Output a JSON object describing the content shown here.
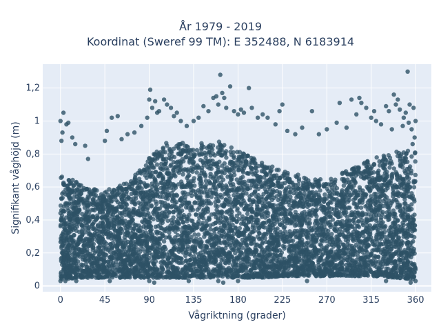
{
  "chart_data": {
    "type": "scatter",
    "title_line1": "År 1979 - 2019",
    "title_line2": "Koordinat (Sweref 99 TM): E 352488, N 6183914",
    "xlabel": "Vågriktning (grader)",
    "ylabel": "Signifikant våghöjd (m)",
    "xlim": [
      -18,
      376
    ],
    "ylim": [
      -0.035,
      1.345
    ],
    "x_ticks": [
      0,
      45,
      90,
      135,
      180,
      225,
      270,
      315,
      360
    ],
    "x_tick_labels": [
      "0",
      "45",
      "90",
      "135",
      "180",
      "225",
      "270",
      "315",
      "360"
    ],
    "y_ticks": [
      0,
      0.2,
      0.4,
      0.6,
      0.8,
      1,
      1.2
    ],
    "y_tick_labels": [
      "0",
      "0,2",
      "0,4",
      "0,6",
      "0,8",
      "1",
      "1,2"
    ],
    "grid": true,
    "marker_color": "#2e5266",
    "plot_background": "#e5ecf6",
    "density_envelope": [
      {
        "x": 0,
        "y_min": 0.04,
        "y_max": 0.68
      },
      {
        "x": 20,
        "y_min": 0.05,
        "y_max": 0.62
      },
      {
        "x": 45,
        "y_min": 0.05,
        "y_max": 0.58
      },
      {
        "x": 70,
        "y_min": 0.05,
        "y_max": 0.63
      },
      {
        "x": 90,
        "y_min": 0.05,
        "y_max": 0.78
      },
      {
        "x": 110,
        "y_min": 0.05,
        "y_max": 0.88
      },
      {
        "x": 135,
        "y_min": 0.05,
        "y_max": 0.86
      },
      {
        "x": 160,
        "y_min": 0.05,
        "y_max": 0.88
      },
      {
        "x": 180,
        "y_min": 0.05,
        "y_max": 0.82
      },
      {
        "x": 205,
        "y_min": 0.05,
        "y_max": 0.75
      },
      {
        "x": 225,
        "y_min": 0.06,
        "y_max": 0.7
      },
      {
        "x": 250,
        "y_min": 0.06,
        "y_max": 0.66
      },
      {
        "x": 270,
        "y_min": 0.06,
        "y_max": 0.64
      },
      {
        "x": 290,
        "y_min": 0.06,
        "y_max": 0.7
      },
      {
        "x": 315,
        "y_min": 0.06,
        "y_max": 0.77
      },
      {
        "x": 340,
        "y_min": 0.05,
        "y_max": 0.82
      },
      {
        "x": 360,
        "y_min": 0.04,
        "y_max": 0.82
      }
    ],
    "outlier_points": [
      [
        0,
        1.0
      ],
      [
        3,
        1.05
      ],
      [
        6,
        0.98
      ],
      [
        8,
        0.99
      ],
      [
        2,
        0.93
      ],
      [
        12,
        0.9
      ],
      [
        1,
        0.88
      ],
      [
        15,
        0.86
      ],
      [
        25,
        0.85
      ],
      [
        28,
        0.77
      ],
      [
        45,
        0.88
      ],
      [
        47,
        0.94
      ],
      [
        52,
        1.02
      ],
      [
        58,
        1.03
      ],
      [
        62,
        0.89
      ],
      [
        68,
        0.92
      ],
      [
        75,
        0.93
      ],
      [
        82,
        0.97
      ],
      [
        88,
        1.02
      ],
      [
        90,
        1.13
      ],
      [
        91,
        1.19
      ],
      [
        93,
        1.08
      ],
      [
        96,
        1.12
      ],
      [
        98,
        1.05
      ],
      [
        100,
        1.06
      ],
      [
        105,
        1.13
      ],
      [
        108,
        1.1
      ],
      [
        112,
        1.08
      ],
      [
        115,
        1.03
      ],
      [
        118,
        1.05
      ],
      [
        122,
        1.0
      ],
      [
        128,
        0.97
      ],
      [
        135,
        1.0
      ],
      [
        140,
        1.02
      ],
      [
        145,
        1.09
      ],
      [
        150,
        1.06
      ],
      [
        155,
        1.14
      ],
      [
        158,
        1.15
      ],
      [
        160,
        1.1
      ],
      [
        162,
        1.28
      ],
      [
        164,
        1.17
      ],
      [
        166,
        1.14
      ],
      [
        168,
        1.08
      ],
      [
        172,
        1.21
      ],
      [
        176,
        1.06
      ],
      [
        180,
        1.04
      ],
      [
        183,
        1.07
      ],
      [
        186,
        1.05
      ],
      [
        191,
        1.2
      ],
      [
        194,
        1.08
      ],
      [
        200,
        1.02
      ],
      [
        205,
        1.04
      ],
      [
        210,
        1.02
      ],
      [
        218,
        0.98
      ],
      [
        222,
        1.06
      ],
      [
        225,
        1.1
      ],
      [
        230,
        0.94
      ],
      [
        238,
        0.92
      ],
      [
        245,
        0.96
      ],
      [
        255,
        1.06
      ],
      [
        262,
        0.92
      ],
      [
        270,
        0.95
      ],
      [
        280,
        0.99
      ],
      [
        283,
        1.11
      ],
      [
        290,
        0.96
      ],
      [
        295,
        1.13
      ],
      [
        300,
        1.04
      ],
      [
        303,
        1.14
      ],
      [
        305,
        1.11
      ],
      [
        310,
        1.08
      ],
      [
        315,
        1.02
      ],
      [
        318,
        1.06
      ],
      [
        320,
        1.0
      ],
      [
        325,
        0.98
      ],
      [
        330,
        1.09
      ],
      [
        333,
        1.06
      ],
      [
        338,
        1.16
      ],
      [
        340,
        1.1
      ],
      [
        344,
        1.07
      ],
      [
        348,
        1.02
      ],
      [
        350,
        1.05
      ],
      [
        352,
        1.3
      ],
      [
        354,
        1.1
      ],
      [
        356,
        0.95
      ],
      [
        358,
        1.08
      ],
      [
        360,
        1.0
      ],
      [
        359,
        0.9
      ],
      [
        357,
        0.86
      ],
      [
        353,
        0.99
      ],
      [
        347,
        0.97
      ],
      [
        342,
        1.13
      ],
      [
        336,
        0.95
      ],
      [
        0,
        0.03
      ],
      [
        5,
        0.03
      ],
      [
        16,
        0.03
      ],
      [
        50,
        0.03
      ],
      [
        90,
        0.03
      ],
      [
        95,
        0.02
      ],
      [
        130,
        0.03
      ],
      [
        160,
        0.03
      ],
      [
        165,
        0.02
      ],
      [
        180,
        0.03
      ],
      [
        250,
        0.03
      ],
      [
        330,
        0.03
      ],
      [
        355,
        0.02
      ],
      [
        360,
        0.03
      ]
    ]
  }
}
